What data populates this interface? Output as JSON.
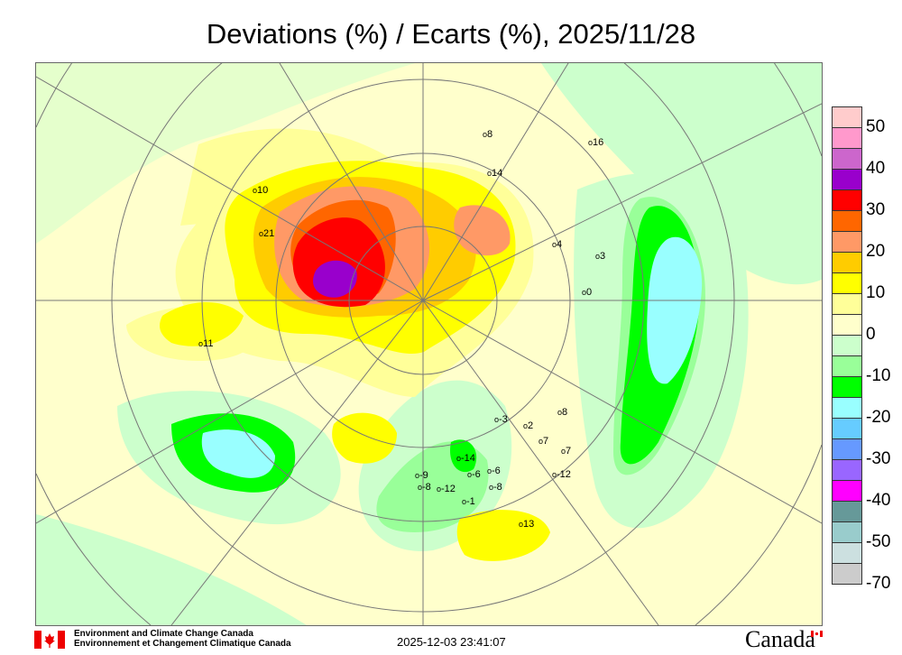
{
  "title": "Deviations (%) / Ecarts (%), 2025/11/28",
  "legend": {
    "colors": [
      "#ffcccc",
      "#ff99cc",
      "#cc66cc",
      "#9900cc",
      "#ff0000",
      "#ff6600",
      "#ff9966",
      "#ffcc00",
      "#ffff00",
      "#ffff99",
      "#ffffcc",
      "#ccffcc",
      "#99ff99",
      "#00ff00",
      "#99ffff",
      "#66ccff",
      "#6699ff",
      "#9966ff",
      "#ff00ff",
      "#669999",
      "#99cccc",
      "#cce0e0",
      "#cccccc"
    ],
    "labels": [
      "50",
      "40",
      "30",
      "20",
      "10",
      "0",
      "-10",
      "-20",
      "-30",
      "-40",
      "-50",
      "-70"
    ]
  },
  "stations": [
    "10",
    "21",
    "11",
    "8",
    "14",
    "16",
    "4",
    "3",
    "0",
    "-3",
    "2",
    "8",
    "7",
    "7",
    "-14",
    "-9",
    "-8",
    "-12",
    "-6",
    "-6",
    "-8",
    "-1",
    "-12",
    "13"
  ],
  "footer": {
    "org_en": "Environment and Climate Change Canada",
    "org_fr": "Environnement et Changement Climatique Canada",
    "timestamp": "2025-12-03 23:41:07",
    "wordmark": "Canada"
  }
}
